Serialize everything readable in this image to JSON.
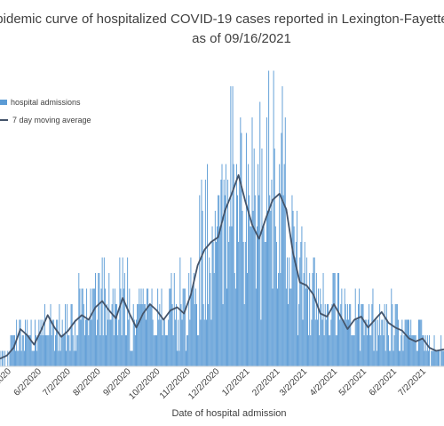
{
  "chart_data": {
    "type": "bar",
    "title_line1": "pidemic curve of hospitalized COVID-19 cases reported in Lexington-Fayette",
    "title_line2": "as of 09/16/2021",
    "xlabel": "Date of hospital admission",
    "ylabel": "",
    "x_tick_labels": [
      "2020",
      "6/2/2020",
      "7/2/2020",
      "8/2/2020",
      "9/2/2020",
      "10/2/2020",
      "11/2/2020",
      "12/2/2020",
      "1/2/2021",
      "2/2/2021",
      "3/2/2021",
      "4/2/2021",
      "5/2/2021",
      "6/2/2021",
      "7/2/2021"
    ],
    "date_start": "2020-04-24",
    "date_end": "2021-07-24",
    "ylim": [
      0,
      20
    ],
    "grid": false,
    "legend_position": "top-left",
    "series": [
      {
        "name": "hospital admissions",
        "kind": "bar",
        "color": "#5b9bd5"
      },
      {
        "name": "7 day moving average",
        "kind": "line",
        "color": "#44546a"
      }
    ],
    "moving_average_points": [
      [
        "2020-04-24",
        0.5
      ],
      [
        "2020-05-01",
        0.7
      ],
      [
        "2020-05-08",
        1.2
      ],
      [
        "2020-05-15",
        2.4
      ],
      [
        "2020-05-22",
        2.0
      ],
      [
        "2020-05-29",
        1.4
      ],
      [
        "2020-06-05",
        2.3
      ],
      [
        "2020-06-12",
        3.3
      ],
      [
        "2020-06-19",
        2.5
      ],
      [
        "2020-06-26",
        1.9
      ],
      [
        "2020-07-03",
        2.3
      ],
      [
        "2020-07-10",
        2.9
      ],
      [
        "2020-07-17",
        3.3
      ],
      [
        "2020-07-24",
        3.0
      ],
      [
        "2020-07-31",
        3.8
      ],
      [
        "2020-08-07",
        4.2
      ],
      [
        "2020-08-14",
        3.6
      ],
      [
        "2020-08-21",
        3.1
      ],
      [
        "2020-08-28",
        4.4
      ],
      [
        "2020-09-04",
        3.4
      ],
      [
        "2020-09-11",
        2.5
      ],
      [
        "2020-09-18",
        3.4
      ],
      [
        "2020-09-25",
        4.0
      ],
      [
        "2020-10-02",
        3.6
      ],
      [
        "2020-10-09",
        3.0
      ],
      [
        "2020-10-16",
        3.6
      ],
      [
        "2020-10-23",
        3.8
      ],
      [
        "2020-10-30",
        3.4
      ],
      [
        "2020-11-06",
        4.6
      ],
      [
        "2020-11-13",
        6.5
      ],
      [
        "2020-11-20",
        7.5
      ],
      [
        "2020-11-27",
        8.0
      ],
      [
        "2020-12-04",
        8.3
      ],
      [
        "2020-12-11",
        10.0
      ],
      [
        "2020-12-18",
        11.1
      ],
      [
        "2020-12-25",
        12.3
      ],
      [
        "2021-01-01",
        10.6
      ],
      [
        "2021-01-08",
        9.1
      ],
      [
        "2021-01-15",
        8.2
      ],
      [
        "2021-01-22",
        9.5
      ],
      [
        "2021-01-29",
        10.7
      ],
      [
        "2021-02-05",
        11.1
      ],
      [
        "2021-02-12",
        10.1
      ],
      [
        "2021-02-19",
        7.3
      ],
      [
        "2021-02-26",
        5.4
      ],
      [
        "2021-03-05",
        5.2
      ],
      [
        "2021-03-12",
        4.6
      ],
      [
        "2021-03-19",
        3.4
      ],
      [
        "2021-03-26",
        3.2
      ],
      [
        "2021-04-02",
        4.0
      ],
      [
        "2021-04-09",
        3.2
      ],
      [
        "2021-04-16",
        2.4
      ],
      [
        "2021-04-23",
        3.0
      ],
      [
        "2021-04-30",
        3.2
      ],
      [
        "2021-05-07",
        2.5
      ],
      [
        "2021-05-14",
        3.0
      ],
      [
        "2021-05-21",
        3.5
      ],
      [
        "2021-05-28",
        2.8
      ],
      [
        "2021-06-04",
        2.5
      ],
      [
        "2021-06-11",
        2.3
      ],
      [
        "2021-06-18",
        1.8
      ],
      [
        "2021-06-25",
        1.6
      ],
      [
        "2021-07-02",
        1.8
      ],
      [
        "2021-07-09",
        1.2
      ],
      [
        "2021-07-16",
        1.0
      ],
      [
        "2021-07-24",
        1.1
      ]
    ]
  }
}
